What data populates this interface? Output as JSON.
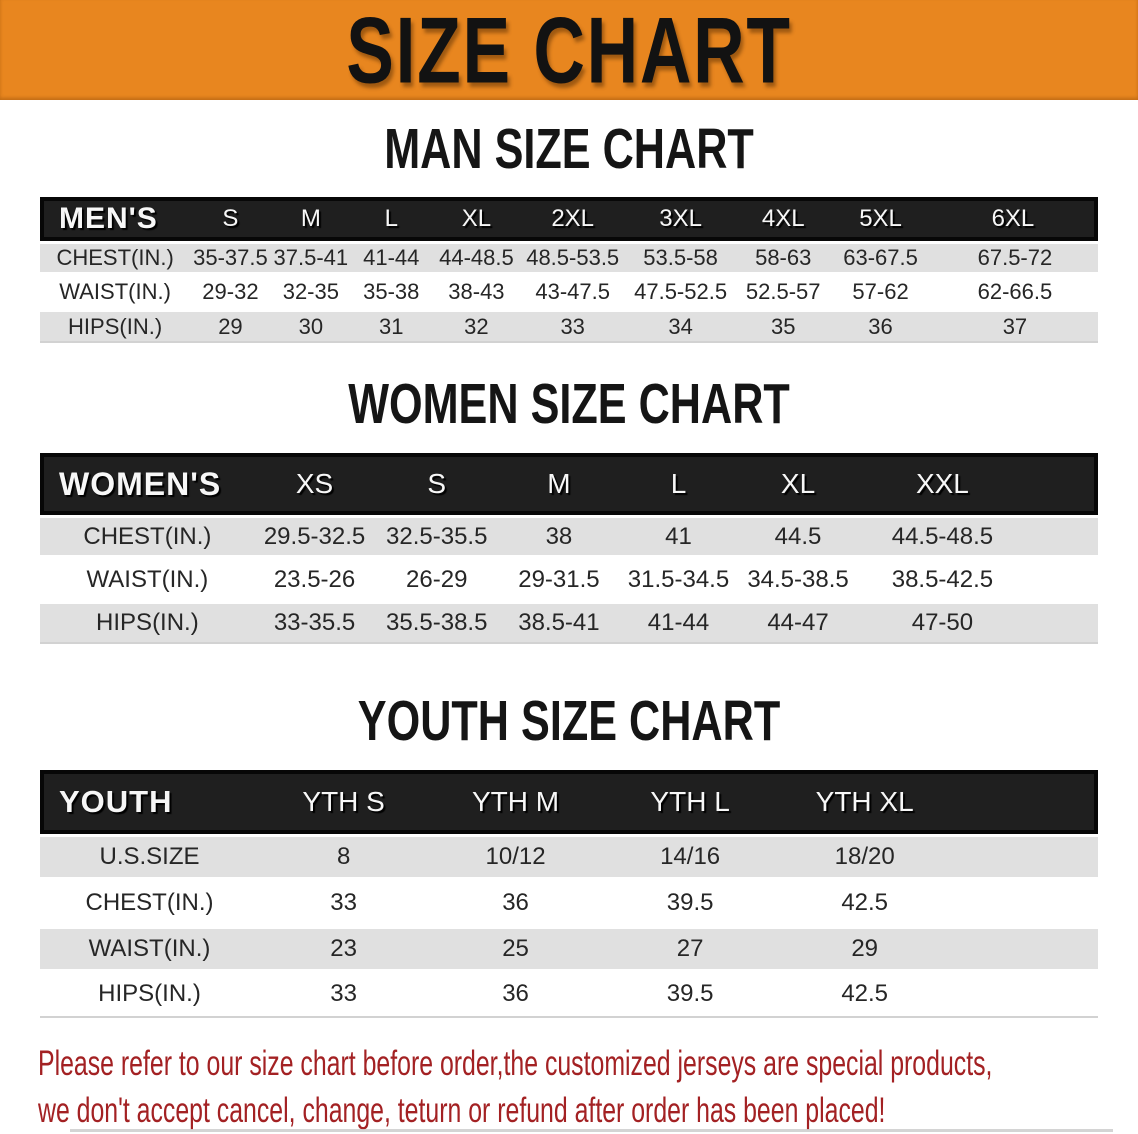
{
  "banner": {
    "title": "SIZE CHART"
  },
  "colors": {
    "banner_bg": "#E8861F",
    "header_bg": "#1F1F1F",
    "row_alt_bg": "#E0E0E0",
    "footer_text": "#A32123"
  },
  "sections": [
    {
      "heading": "MAN SIZE CHART",
      "label": "MEN'S",
      "columns": [
        "S",
        "M",
        "L",
        "XL",
        "2XL",
        "3XL",
        "4XL",
        "5XL",
        "6XL"
      ],
      "rows": [
        {
          "label": "CHEST(IN.)",
          "values": [
            "35-37.5",
            "37.5-41",
            "41-44",
            "44-48.5",
            "48.5-53.5",
            "53.5-58",
            "58-63",
            "63-67.5",
            "67.5-72"
          ]
        },
        {
          "label": "WAIST(IN.)",
          "values": [
            "29-32",
            "32-35",
            "35-38",
            "38-43",
            "43-47.5",
            "47.5-52.5",
            "52.5-57",
            "57-62",
            "62-66.5"
          ]
        },
        {
          "label": "HIPS(IN.)",
          "values": [
            "29",
            "30",
            "31",
            "32",
            "33",
            "34",
            "35",
            "36",
            "37"
          ]
        }
      ]
    },
    {
      "heading": "WOMEN SIZE CHART",
      "label": "WOMEN'S",
      "columns": [
        "XS",
        "S",
        "M",
        "L",
        "XL",
        "XXL"
      ],
      "rows": [
        {
          "label": "CHEST(IN.)",
          "values": [
            "29.5-32.5",
            "32.5-35.5",
            "38",
            "41",
            "44.5",
            "44.5-48.5"
          ]
        },
        {
          "label": "WAIST(IN.)",
          "values": [
            "23.5-26",
            "26-29",
            "29-31.5",
            "31.5-34.5",
            "34.5-38.5",
            "38.5-42.5"
          ]
        },
        {
          "label": "HIPS(IN.)",
          "values": [
            "33-35.5",
            "35.5-38.5",
            "38.5-41",
            "41-44",
            "44-47",
            "47-50"
          ]
        }
      ]
    },
    {
      "heading": "YOUTH SIZE CHART",
      "label": "YOUTH",
      "columns": [
        "YTH S",
        "YTH M",
        "YTH L",
        "YTH XL"
      ],
      "rows": [
        {
          "label": "U.S.SIZE",
          "values": [
            "8",
            "10/12",
            "14/16",
            "18/20"
          ]
        },
        {
          "label": "CHEST(IN.)",
          "values": [
            "33",
            "36",
            "39.5",
            "42.5"
          ]
        },
        {
          "label": "WAIST(IN.)",
          "values": [
            "23",
            "25",
            "27",
            "29"
          ]
        },
        {
          "label": "HIPS(IN.)",
          "values": [
            "33",
            "36",
            "39.5",
            "42.5"
          ]
        }
      ]
    }
  ],
  "footer": {
    "line1": "Please refer to our size chart before order,the customized jerseys are special products,",
    "line2": "we don't accept cancel, change, teturn or refund after order has been placed!"
  }
}
